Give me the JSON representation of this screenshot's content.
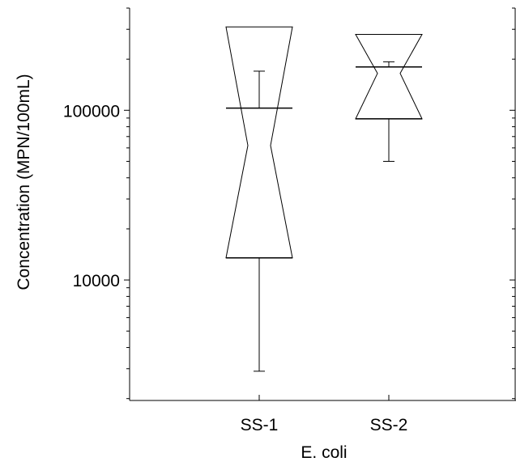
{
  "chart_data": {
    "type": "box",
    "chart_subtype": "notched box plot",
    "xlabel": "E. coli",
    "ylabel": "Concentration (MPN/100mL)",
    "yscale": "log",
    "ylim": [
      1950,
      400000
    ],
    "yticks_labeled": [
      10000,
      100000
    ],
    "ytick_labels": [
      "10000",
      "100000"
    ],
    "categories": [
      "SS-1",
      "SS-2"
    ],
    "boxes": [
      {
        "label": "SS-1",
        "whisker_low": 2900,
        "q1": 13500,
        "median": 62000,
        "q3": 103000,
        "whisker_high": 170000,
        "notch_low": 13500,
        "notch_high": 310000
      },
      {
        "label": "SS-2",
        "whisker_low": 50000,
        "q1": 89000,
        "median": 165000,
        "q3": 180000,
        "whisker_high": 193000,
        "notch_low": 89000,
        "notch_high": 280000
      }
    ],
    "grid": false,
    "legend": "none"
  }
}
